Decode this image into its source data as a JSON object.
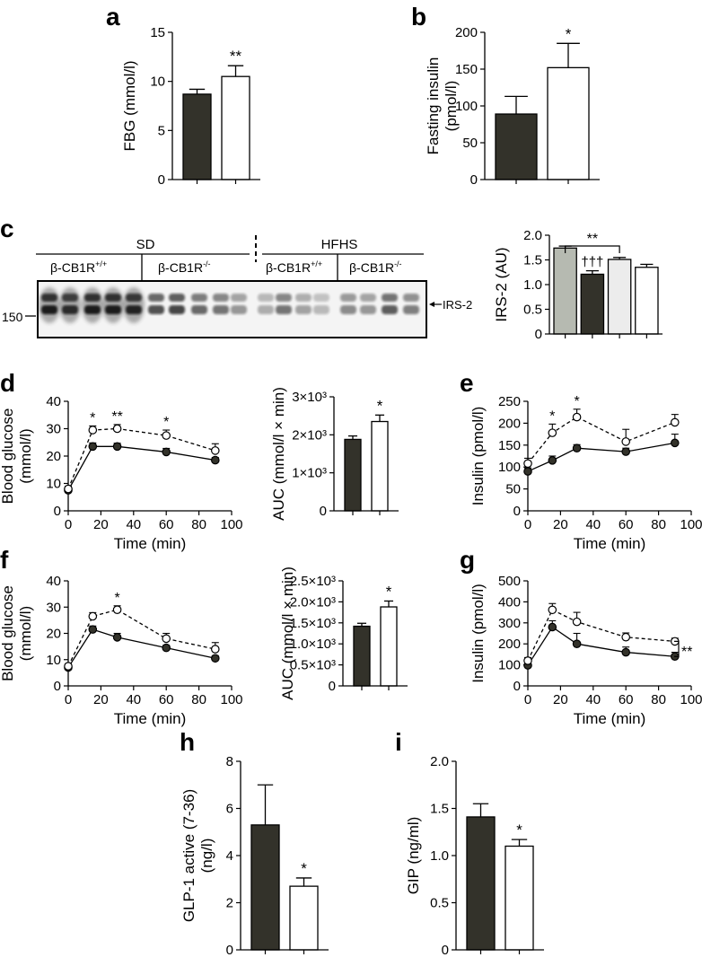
{
  "colors": {
    "dark": "#33322a",
    "sd_ko": "#b6bab1",
    "hfhs_wt": "#33322a",
    "hfhs_ko": "#ececec",
    "white": "#ffffff",
    "line": "#1a1a1a"
  },
  "panel_letters": [
    "a",
    "b",
    "c",
    "d",
    "e",
    "f",
    "g",
    "h",
    "i"
  ],
  "chart_data": [
    {
      "id": "a",
      "type": "bar",
      "ylabel": "FBG (mmol/l)",
      "ylim": [
        0,
        15
      ],
      "yticks": [
        0,
        5,
        10,
        15
      ],
      "bars": [
        {
          "value": 8.7,
          "err": 0.5,
          "fill": "dark",
          "sig": ""
        },
        {
          "value": 10.5,
          "err": 1.1,
          "fill": "white",
          "sig": "**"
        }
      ]
    },
    {
      "id": "b",
      "type": "bar",
      "ylabel": [
        "Fasting insulin",
        "(pmol/l)"
      ],
      "ylim": [
        0,
        200
      ],
      "yticks": [
        0,
        50,
        100,
        150,
        200
      ],
      "bars": [
        {
          "value": 89,
          "err": 24,
          "fill": "dark",
          "sig": ""
        },
        {
          "value": 152,
          "err": 33,
          "fill": "white",
          "sig": "*"
        }
      ]
    },
    {
      "id": "c_bar",
      "type": "bar",
      "ylabel": "IRS-2 (AU)",
      "ylim": [
        0,
        2.0
      ],
      "yticks": [
        "0",
        "0.5",
        "1.0",
        "1.5",
        "2.0"
      ],
      "bars": [
        {
          "value": 1.74,
          "err": 0.04,
          "fill": "sd_ko",
          "sig": ""
        },
        {
          "value": 1.21,
          "err": 0.07,
          "fill": "dark",
          "sig": "†††"
        },
        {
          "value": 1.51,
          "err": 0.04,
          "fill": "hfhs_ko",
          "sig": ""
        },
        {
          "value": 1.35,
          "err": 0.06,
          "fill": "white",
          "sig": ""
        }
      ],
      "bracket": {
        "from": 0,
        "to": 2,
        "label": "**"
      }
    },
    {
      "id": "d_line",
      "type": "line",
      "ylabel": [
        "Blood glucose",
        "(mmol/l)"
      ],
      "xlabel": "Time (min)",
      "xlim": [
        0,
        100
      ],
      "ylim": [
        0,
        40
      ],
      "xticks": [
        0,
        20,
        40,
        60,
        80,
        100
      ],
      "yticks": [
        0,
        10,
        20,
        30,
        40
      ],
      "x": [
        0,
        15,
        30,
        60,
        90
      ],
      "series": [
        {
          "values": [
            7.5,
            23.5,
            23.5,
            21.5,
            18.5
          ],
          "err": [
            1,
            1.3,
            1.2,
            1.3,
            1
          ],
          "style": "solid"
        },
        {
          "values": [
            8,
            29.5,
            30,
            27.5,
            22
          ],
          "err": [
            1,
            1.5,
            1.5,
            2,
            2.5
          ],
          "style": "dashed"
        }
      ],
      "sig": [
        {
          "x": 15,
          "label": "*"
        },
        {
          "x": 30,
          "label": "**"
        },
        {
          "x": 60,
          "label": "*"
        }
      ]
    },
    {
      "id": "d_auc",
      "type": "bar",
      "ylabel": "AUC (mmol/l × min)",
      "ylim": [
        0,
        3000
      ],
      "yticks": [
        "0",
        "1×10³",
        "2×10³",
        "3×10³"
      ],
      "bars": [
        {
          "value": 1880,
          "err": 90,
          "fill": "dark",
          "sig": ""
        },
        {
          "value": 2350,
          "err": 170,
          "fill": "white",
          "sig": "*"
        }
      ]
    },
    {
      "id": "e",
      "type": "line",
      "ylabel": "Insulin (pmol/l)",
      "xlabel": "Time (min)",
      "xlim": [
        0,
        100
      ],
      "ylim": [
        0,
        250
      ],
      "xticks": [
        0,
        20,
        40,
        60,
        80,
        100
      ],
      "yticks": [
        0,
        50,
        100,
        150,
        200,
        250
      ],
      "x": [
        0,
        15,
        30,
        60,
        90
      ],
      "series": [
        {
          "values": [
            90,
            115,
            143,
            135,
            155
          ],
          "err": [
            8,
            10,
            8,
            8,
            20
          ],
          "style": "solid"
        },
        {
          "values": [
            108,
            178,
            214,
            158,
            202
          ],
          "err": [
            12,
            20,
            18,
            28,
            18
          ],
          "style": "dashed"
        }
      ],
      "sig": [
        {
          "x": 15,
          "label": "*"
        },
        {
          "x": 30,
          "label": "*"
        }
      ]
    },
    {
      "id": "f_line",
      "type": "line",
      "ylabel": [
        "Blood glucose",
        "(mmol/l)"
      ],
      "xlabel": "Time (min)",
      "xlim": [
        0,
        100
      ],
      "ylim": [
        0,
        40
      ],
      "xticks": [
        0,
        20,
        40,
        60,
        80,
        100
      ],
      "yticks": [
        0,
        10,
        20,
        30,
        40
      ],
      "x": [
        0,
        15,
        30,
        60,
        90
      ],
      "series": [
        {
          "values": [
            7,
            21.5,
            18.5,
            14.5,
            10.5
          ],
          "err": [
            0.8,
            1.3,
            1.5,
            1,
            1
          ],
          "style": "solid"
        },
        {
          "values": [
            7.5,
            26.5,
            29,
            18,
            14
          ],
          "err": [
            0.8,
            1.4,
            1.5,
            2,
            2.5
          ],
          "style": "dashed"
        }
      ],
      "sig": [
        {
          "x": 30,
          "label": "*"
        }
      ]
    },
    {
      "id": "f_auc",
      "type": "bar",
      "ylabel": "AUC (mmol/l × min)",
      "ylim": [
        0,
        2500
      ],
      "yticks": [
        "0",
        "0.5×10³",
        "1.0×10³",
        "1.5×10³",
        "2.0×10³",
        "2.5×10³"
      ],
      "bars": [
        {
          "value": 1420,
          "err": 70,
          "fill": "dark",
          "sig": ""
        },
        {
          "value": 1880,
          "err": 140,
          "fill": "white",
          "sig": "*"
        }
      ]
    },
    {
      "id": "g",
      "type": "line",
      "ylabel": "Insulin (pmol/l)",
      "xlabel": "Time (min)",
      "xlim": [
        0,
        100
      ],
      "ylim": [
        0,
        500
      ],
      "xticks": [
        0,
        20,
        40,
        60,
        80,
        100
      ],
      "yticks": [
        0,
        100,
        200,
        300,
        400,
        500
      ],
      "x": [
        0,
        15,
        30,
        60,
        90
      ],
      "series": [
        {
          "values": [
            98,
            280,
            200,
            160,
            140
          ],
          "err": [
            10,
            30,
            50,
            25,
            20
          ],
          "style": "solid"
        },
        {
          "values": [
            120,
            362,
            305,
            232,
            212
          ],
          "err": [
            15,
            30,
            45,
            20,
            15
          ],
          "style": "dashed"
        }
      ],
      "sig": [],
      "bracket_label": "**"
    },
    {
      "id": "h",
      "type": "bar",
      "ylabel": [
        "GLP-1 active (7-36)",
        "(ng/l)"
      ],
      "ylim": [
        0,
        8
      ],
      "yticks": [
        0,
        2,
        4,
        6,
        8
      ],
      "bars": [
        {
          "value": 5.3,
          "err": 1.7,
          "fill": "dark",
          "sig": ""
        },
        {
          "value": 2.7,
          "err": 0.35,
          "fill": "white",
          "sig": "*"
        }
      ]
    },
    {
      "id": "i",
      "type": "bar",
      "ylabel": "GIP (ng/ml)",
      "ylim": [
        0,
        2.0
      ],
      "yticks": [
        "0",
        "0.5",
        "1.0",
        "1.5",
        "2.0"
      ],
      "bars": [
        {
          "value": 1.41,
          "err": 0.14,
          "fill": "dark",
          "sig": ""
        },
        {
          "value": 1.1,
          "err": 0.07,
          "fill": "white",
          "sig": "*"
        }
      ]
    }
  ],
  "blot": {
    "group_sd": "SD",
    "group_hfhs": "HFHS",
    "genotype_wt": "β-CB1R",
    "genotype_wt_sup": "+/+",
    "genotype_ko": "β-CB1R",
    "genotype_ko_sup": "-/-",
    "band_label": "IRS-2",
    "marker": "150"
  }
}
